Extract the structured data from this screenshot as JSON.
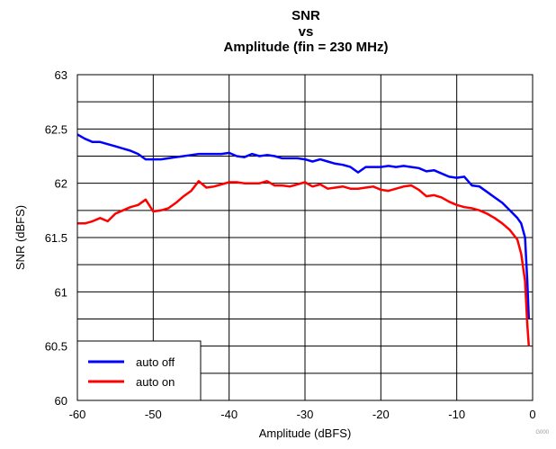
{
  "chart_data": {
    "type": "line",
    "title_lines": [
      "SNR",
      "vs",
      "Amplitude (fin = 230 MHz)"
    ],
    "xlabel": "Amplitude (dBFS)",
    "ylabel": "SNR (dBFS)",
    "xlim": [
      -60,
      0
    ],
    "ylim": [
      60,
      63
    ],
    "x_ticks": [
      -60,
      -50,
      -40,
      -30,
      -20,
      -10,
      0
    ],
    "x_tick_labels": [
      "-60",
      "-50",
      "-40",
      "-30",
      "-20",
      "-10",
      "0"
    ],
    "y_ticks": [
      60,
      60.5,
      61,
      61.5,
      62,
      62.5,
      63
    ],
    "y_tick_labels": [
      "60",
      "60.5",
      "61",
      "61.5",
      "62",
      "62.5",
      "63"
    ],
    "grid": true,
    "legend_position": "bottom-left",
    "figure_code": "G000",
    "series": [
      {
        "name": "auto off",
        "color": "#0000ff",
        "x": [
          -60,
          -59,
          -58,
          -57,
          -56,
          -55,
          -54,
          -53,
          -52,
          -51,
          -50,
          -49,
          -48,
          -47,
          -46,
          -45,
          -44,
          -43,
          -42,
          -41,
          -40,
          -39,
          -38,
          -37,
          -36,
          -35,
          -34,
          -33,
          -32,
          -31,
          -30,
          -29,
          -28,
          -27,
          -26,
          -25,
          -24,
          -23,
          -22,
          -21,
          -20,
          -19,
          -18,
          -17,
          -16,
          -15,
          -14,
          -13,
          -12,
          -11,
          -10,
          -9,
          -8,
          -7,
          -6,
          -5,
          -4,
          -3,
          -2,
          -1.5,
          -1,
          -0.7,
          -0.5
        ],
        "y": [
          62.45,
          62.41,
          62.38,
          62.38,
          62.36,
          62.34,
          62.32,
          62.3,
          62.27,
          62.22,
          62.22,
          62.22,
          62.23,
          62.24,
          62.25,
          62.26,
          62.27,
          62.27,
          62.27,
          62.27,
          62.28,
          62.25,
          62.24,
          62.27,
          62.25,
          62.26,
          62.25,
          62.23,
          62.23,
          62.23,
          62.22,
          62.2,
          62.22,
          62.2,
          62.18,
          62.17,
          62.15,
          62.1,
          62.15,
          62.15,
          62.15,
          62.16,
          62.15,
          62.16,
          62.15,
          62.14,
          62.11,
          62.12,
          62.09,
          62.06,
          62.05,
          62.06,
          61.98,
          61.97,
          61.92,
          61.87,
          61.82,
          61.75,
          61.68,
          61.63,
          61.5,
          61.1,
          60.75
        ]
      },
      {
        "name": "auto on",
        "color": "#ff0000",
        "x": [
          -60,
          -59,
          -58,
          -57,
          -56,
          -55,
          -54,
          -53,
          -52,
          -51,
          -50,
          -49,
          -48,
          -47,
          -46,
          -45,
          -44,
          -43,
          -42,
          -41,
          -40,
          -39,
          -38,
          -37,
          -36,
          -35,
          -34,
          -33,
          -32,
          -31,
          -30,
          -29,
          -28,
          -27,
          -26,
          -25,
          -24,
          -23,
          -22,
          -21,
          -20,
          -19,
          -18,
          -17,
          -16,
          -15,
          -14,
          -13,
          -12,
          -11,
          -10,
          -9,
          -8,
          -7,
          -6,
          -5,
          -4,
          -3,
          -2,
          -1.5,
          -1,
          -0.7,
          -0.5
        ],
        "y": [
          61.63,
          61.63,
          61.65,
          61.68,
          61.65,
          61.72,
          61.75,
          61.78,
          61.8,
          61.85,
          61.74,
          61.75,
          61.77,
          61.82,
          61.88,
          61.93,
          62.02,
          61.96,
          61.97,
          61.99,
          62.01,
          62.01,
          62.0,
          62.0,
          62.0,
          62.02,
          61.98,
          61.98,
          61.97,
          61.99,
          62.01,
          61.97,
          61.99,
          61.95,
          61.96,
          61.97,
          61.95,
          61.95,
          61.96,
          61.97,
          61.94,
          61.93,
          61.95,
          61.97,
          61.98,
          61.94,
          61.88,
          61.89,
          61.87,
          61.83,
          61.8,
          61.78,
          61.77,
          61.75,
          61.72,
          61.68,
          61.63,
          61.57,
          61.48,
          61.35,
          61.1,
          60.7,
          60.5
        ]
      }
    ]
  }
}
